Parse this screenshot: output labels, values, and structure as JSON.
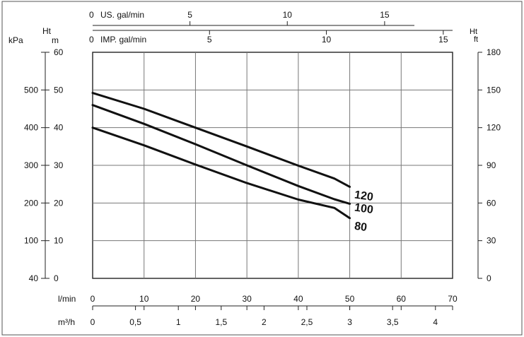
{
  "chart_data": {
    "type": "line",
    "x": [
      0,
      10,
      20,
      30,
      40,
      47,
      50
    ],
    "xunit_main": "l/min",
    "xlim": [
      0,
      70
    ],
    "series": [
      {
        "name": "120",
        "x": [
          0,
          10,
          20,
          30,
          40,
          47,
          50
        ],
        "values": [
          49.2,
          45,
          40,
          35,
          29.9,
          26.5,
          24.3
        ]
      },
      {
        "name": "100",
        "x": [
          0,
          10,
          20,
          30,
          40,
          47,
          50
        ],
        "values": [
          46,
          41,
          35.6,
          30,
          24.5,
          21,
          19.8
        ]
      },
      {
        "name": "80",
        "x": [
          0,
          10,
          20,
          30,
          40,
          47,
          50
        ],
        "values": [
          40,
          35.3,
          30.2,
          25.3,
          20.9,
          18.7,
          16
        ]
      }
    ],
    "left_axis": {
      "ht_label": "Ht",
      "m_unit": "m",
      "kpa_unit": "kPa",
      "m_ticks": [
        "0",
        "10",
        "20",
        "30",
        "40",
        "50",
        "60"
      ],
      "kpa_ticks": [
        "40",
        "100",
        "200",
        "300",
        "400",
        "500"
      ],
      "ylim": [
        0,
        60
      ]
    },
    "right_axis": {
      "ht_label": "Ht",
      "unit": "ft",
      "ticks": [
        "0",
        "30",
        "60",
        "90",
        "120",
        "150",
        "180"
      ]
    },
    "top_axes": {
      "us_label": "US. gal/min",
      "us_zero": "0",
      "us_ticks": [
        "5",
        "10",
        "15"
      ],
      "imp_label": "IMP. gal/min",
      "imp_zero": "0",
      "imp_ticks": [
        "5",
        "10",
        "15"
      ]
    },
    "bottom_axes": {
      "lmin_label": "l/min",
      "lmin_ticks": [
        "0",
        "10",
        "20",
        "30",
        "40",
        "50",
        "60",
        "70"
      ],
      "m3h_label": "m³/h",
      "m3h_ticks": [
        "0",
        "0,5",
        "1",
        "1,5",
        "2",
        "2,5",
        "3",
        "3,5",
        "4"
      ]
    },
    "grid": true
  }
}
